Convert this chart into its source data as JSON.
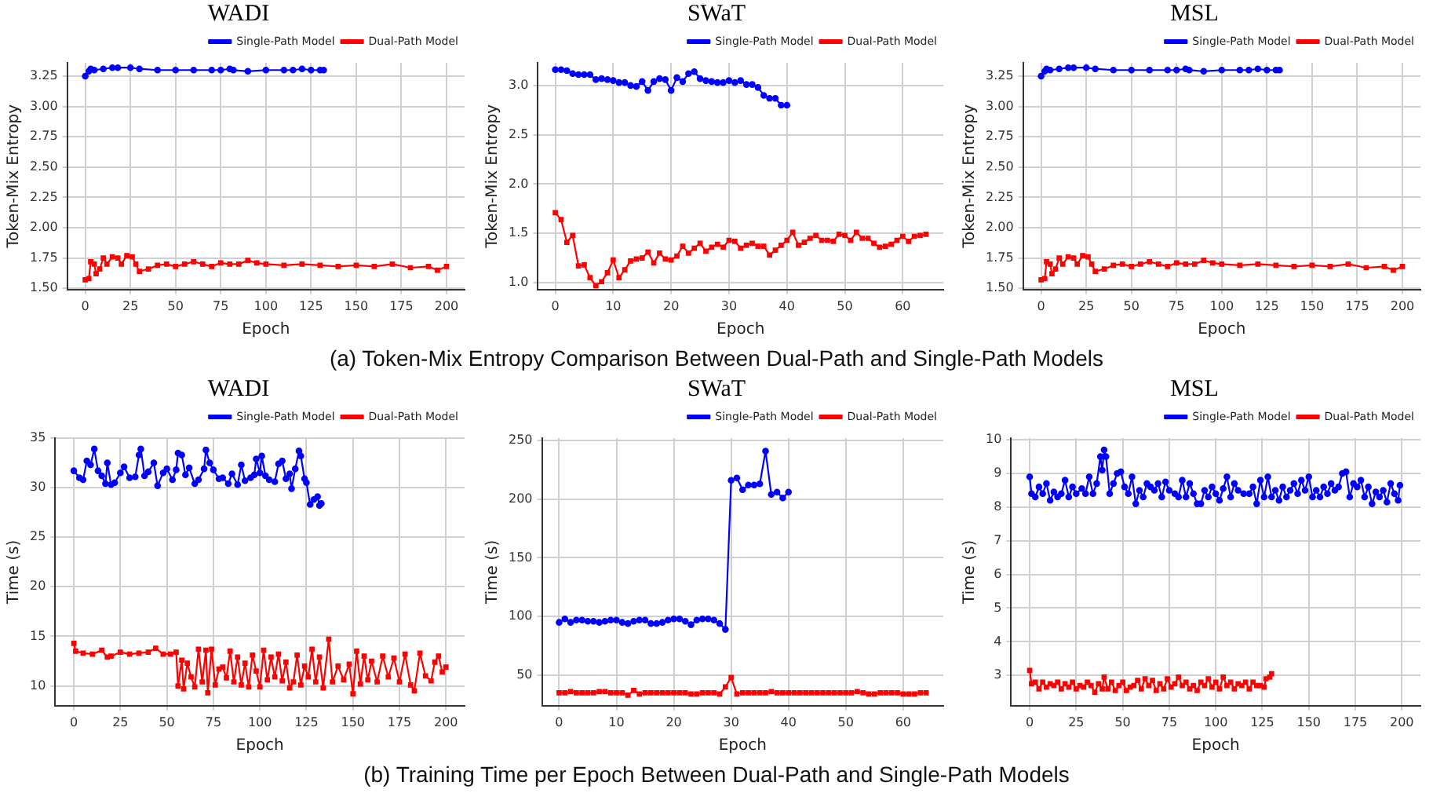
{
  "chart_data": [
    {
      "type": "line",
      "title": "WADI",
      "xlabel": "Epoch",
      "ylabel": "Token-Mix Entropy",
      "xlim": [
        -10,
        210
      ],
      "xticks": [
        0,
        25,
        50,
        75,
        100,
        125,
        150,
        175,
        200
      ],
      "ylim": [
        1.49,
        3.36
      ],
      "yticks": [
        {
          "value": 1.5,
          "label": "1.50"
        },
        1.75,
        {
          "value": 2.0,
          "label": "2.00"
        },
        2.25,
        {
          "value": 2.5,
          "label": "2.50"
        },
        2.75,
        {
          "value": 3.0,
          "label": "3.00"
        },
        3.25
      ],
      "grid": true,
      "legend": "top right",
      "series": [
        {
          "name": "Single-Path Model",
          "color": "#0000ff",
          "marker": "circle",
          "x": [
            0,
            2,
            3,
            5,
            10,
            15,
            18,
            25,
            30,
            40,
            50,
            60,
            70,
            75,
            80,
            82,
            90,
            100,
            110,
            115,
            120,
            125,
            130,
            132
          ],
          "values": [
            3.25,
            3.29,
            3.31,
            3.3,
            3.31,
            3.32,
            3.32,
            3.32,
            3.31,
            3.3,
            3.3,
            3.3,
            3.3,
            3.3,
            3.31,
            3.3,
            3.29,
            3.3,
            3.3,
            3.3,
            3.31,
            3.3,
            3.3,
            3.3
          ]
        },
        {
          "name": "Dual-Path Model",
          "color": "#ff0000",
          "marker": "square",
          "x": [
            0,
            2,
            3,
            5,
            6,
            8,
            10,
            12,
            15,
            18,
            20,
            23,
            26,
            28,
            30,
            35,
            40,
            45,
            50,
            55,
            60,
            65,
            70,
            75,
            80,
            85,
            90,
            95,
            100,
            110,
            120,
            130,
            140,
            150,
            160,
            170,
            180,
            190,
            195,
            200
          ],
          "values": [
            1.57,
            1.58,
            1.72,
            1.7,
            1.62,
            1.66,
            1.75,
            1.7,
            1.76,
            1.75,
            1.7,
            1.77,
            1.76,
            1.7,
            1.64,
            1.66,
            1.69,
            1.7,
            1.68,
            1.7,
            1.72,
            1.7,
            1.68,
            1.71,
            1.7,
            1.7,
            1.73,
            1.71,
            1.7,
            1.69,
            1.7,
            1.69,
            1.68,
            1.69,
            1.68,
            1.7,
            1.67,
            1.68,
            1.65,
            1.68
          ]
        }
      ]
    },
    {
      "type": "line",
      "title": "SWaT",
      "xlabel": "Epoch",
      "ylabel": "Token-Mix Entropy",
      "xlim": [
        -3,
        67
      ],
      "xticks": [
        0,
        10,
        20,
        30,
        40,
        50,
        60
      ],
      "ylim": [
        0.93,
        3.23
      ],
      "yticks": [
        {
          "value": 1.0,
          "label": "1.0"
        },
        1.5,
        {
          "value": 2.0,
          "label": "2.0"
        },
        2.5,
        {
          "value": 3.0,
          "label": "3.0"
        }
      ],
      "grid": true,
      "legend": "top right",
      "annotations": [
        "(a) Token-Mix Entropy Comparison Between Dual-Path and Single-Path Models"
      ],
      "series": [
        {
          "name": "Single-Path Model",
          "color": "#0000ff",
          "marker": "circle",
          "x": [
            0,
            1,
            2,
            3,
            4,
            5,
            6,
            7,
            8,
            9,
            10,
            11,
            12,
            13,
            14,
            15,
            16,
            17,
            18,
            19,
            20,
            21,
            22,
            23,
            24,
            25,
            26,
            27,
            28,
            29,
            30,
            31,
            32,
            33,
            34,
            35,
            36,
            37,
            38,
            39,
            40
          ],
          "values": [
            3.16,
            3.16,
            3.15,
            3.12,
            3.11,
            3.11,
            3.11,
            3.06,
            3.07,
            3.06,
            3.05,
            3.03,
            3.03,
            3.0,
            2.99,
            3.04,
            2.95,
            3.04,
            3.07,
            3.06,
            2.95,
            3.08,
            3.04,
            3.12,
            3.14,
            3.07,
            3.05,
            3.04,
            3.03,
            3.03,
            3.05,
            3.03,
            3.05,
            3.01,
            3.01,
            2.98,
            2.9,
            2.87,
            2.87,
            2.8,
            2.8
          ]
        },
        {
          "name": "Dual-Path Model",
          "color": "#ff0000",
          "marker": "square",
          "x": [
            0,
            1,
            2,
            3,
            4,
            5,
            6,
            7,
            8,
            9,
            10,
            11,
            12,
            13,
            14,
            15,
            16,
            17,
            18,
            19,
            20,
            21,
            22,
            23,
            24,
            25,
            26,
            27,
            28,
            29,
            30,
            31,
            32,
            33,
            34,
            35,
            36,
            37,
            38,
            39,
            40,
            41,
            42,
            43,
            44,
            45,
            46,
            47,
            48,
            49,
            50,
            51,
            52,
            53,
            54,
            55,
            56,
            57,
            58,
            59,
            60,
            61,
            62,
            63,
            64
          ],
          "values": [
            1.71,
            1.64,
            1.41,
            1.48,
            1.17,
            1.18,
            1.05,
            0.97,
            1.01,
            1.1,
            1.23,
            1.05,
            1.13,
            1.22,
            1.24,
            1.25,
            1.31,
            1.2,
            1.3,
            1.24,
            1.23,
            1.27,
            1.37,
            1.3,
            1.35,
            1.4,
            1.32,
            1.36,
            1.39,
            1.36,
            1.43,
            1.42,
            1.35,
            1.38,
            1.4,
            1.37,
            1.37,
            1.28,
            1.33,
            1.38,
            1.43,
            1.51,
            1.38,
            1.41,
            1.45,
            1.48,
            1.43,
            1.43,
            1.42,
            1.49,
            1.48,
            1.43,
            1.51,
            1.45,
            1.45,
            1.4,
            1.36,
            1.37,
            1.39,
            1.43,
            1.47,
            1.42,
            1.47,
            1.48,
            1.49
          ]
        }
      ]
    },
    {
      "type": "line",
      "title": "MSL",
      "xlabel": "Epoch",
      "ylabel": "Token-Mix Entropy",
      "xlim": [
        -10,
        210
      ],
      "xticks": [
        0,
        25,
        50,
        75,
        100,
        125,
        150,
        175,
        200
      ],
      "ylim": [
        1.49,
        3.36
      ],
      "yticks": [
        {
          "value": 1.5,
          "label": "1.50"
        },
        1.75,
        {
          "value": 2.0,
          "label": "2.00"
        },
        2.25,
        {
          "value": 2.5,
          "label": "2.50"
        },
        2.75,
        {
          "value": 3.0,
          "label": "3.00"
        },
        3.25
      ],
      "grid": true,
      "legend": "top right",
      "series": [
        {
          "name": "Single-Path Model",
          "color": "#0000ff",
          "marker": "circle",
          "x": [
            0,
            2,
            3,
            5,
            10,
            15,
            18,
            25,
            30,
            40,
            50,
            60,
            70,
            75,
            80,
            82,
            90,
            100,
            110,
            115,
            120,
            125,
            130,
            132
          ],
          "values": [
            3.25,
            3.29,
            3.31,
            3.3,
            3.31,
            3.32,
            3.32,
            3.32,
            3.31,
            3.3,
            3.3,
            3.3,
            3.3,
            3.3,
            3.31,
            3.3,
            3.29,
            3.3,
            3.3,
            3.3,
            3.31,
            3.3,
            3.3,
            3.3
          ]
        },
        {
          "name": "Dual-Path Model",
          "color": "#ff0000",
          "marker": "square",
          "x": [
            0,
            2,
            3,
            5,
            6,
            8,
            10,
            12,
            15,
            18,
            20,
            23,
            26,
            28,
            30,
            35,
            40,
            45,
            50,
            55,
            60,
            65,
            70,
            75,
            80,
            85,
            90,
            95,
            100,
            110,
            120,
            130,
            140,
            150,
            160,
            170,
            180,
            190,
            195,
            200
          ],
          "values": [
            1.57,
            1.58,
            1.72,
            1.7,
            1.62,
            1.66,
            1.75,
            1.7,
            1.76,
            1.75,
            1.7,
            1.77,
            1.76,
            1.7,
            1.64,
            1.66,
            1.69,
            1.7,
            1.68,
            1.7,
            1.72,
            1.7,
            1.68,
            1.71,
            1.7,
            1.7,
            1.73,
            1.71,
            1.7,
            1.69,
            1.7,
            1.69,
            1.68,
            1.69,
            1.68,
            1.7,
            1.67,
            1.68,
            1.65,
            1.68
          ]
        }
      ]
    },
    {
      "type": "line",
      "title": "WADI",
      "xlabel": "Epoch",
      "ylabel": "Time (s)",
      "xlim": [
        -10,
        210
      ],
      "xticks": [
        0,
        25,
        50,
        75,
        100,
        125,
        150,
        175,
        200
      ],
      "ylim": [
        8,
        35
      ],
      "yticks": [
        10,
        15,
        20,
        25,
        30,
        35
      ],
      "grid": true,
      "legend": "top right",
      "series": [
        {
          "name": "Single-Path Model",
          "color": "#0000ff",
          "marker": "circle",
          "x": [
            0,
            3,
            5,
            7,
            9,
            11,
            13,
            15,
            17,
            18,
            20,
            22,
            25,
            27,
            30,
            33,
            35,
            36,
            38,
            40,
            43,
            45,
            48,
            50,
            53,
            55,
            56,
            58,
            60,
            62,
            65,
            67,
            70,
            71,
            73,
            75,
            78,
            80,
            83,
            85,
            88,
            90,
            92,
            95,
            97,
            98,
            100,
            101,
            103,
            105,
            108,
            110,
            112,
            114,
            116,
            117,
            119,
            121,
            122,
            124,
            125,
            127,
            129,
            131,
            132,
            133
          ],
          "values": [
            31.7,
            31.0,
            30.8,
            32.7,
            32.3,
            33.9,
            31.7,
            31.2,
            30.4,
            32.5,
            30.3,
            30.5,
            31.5,
            32.1,
            31.0,
            31.1,
            33.3,
            33.9,
            31.2,
            31.6,
            32.5,
            30.2,
            31.5,
            31.9,
            30.8,
            31.8,
            33.5,
            33.3,
            31.3,
            32.0,
            30.4,
            30.8,
            31.9,
            33.8,
            32.5,
            31.8,
            30.9,
            31.0,
            30.4,
            31.4,
            30.3,
            32.3,
            30.7,
            31.0,
            31.3,
            32.9,
            31.5,
            33.2,
            31.2,
            30.8,
            30.6,
            32.4,
            32.7,
            30.9,
            31.4,
            29.9,
            31.9,
            33.7,
            33.2,
            30.9,
            30.5,
            28.3,
            28.8,
            29.1,
            28.2,
            28.4
          ]
        },
        {
          "name": "Dual-Path Model",
          "color": "#ff0000",
          "marker": "square",
          "x": [
            0,
            1,
            5,
            10,
            15,
            18,
            20,
            25,
            30,
            35,
            40,
            44,
            48,
            52,
            55,
            56,
            58,
            59,
            61,
            63,
            65,
            67,
            69,
            71,
            72,
            74,
            76,
            78,
            80,
            82,
            84,
            86,
            88,
            90,
            92,
            94,
            96,
            98,
            100,
            102,
            104,
            106,
            108,
            110,
            112,
            114,
            116,
            118,
            120,
            122,
            124,
            126,
            128,
            130,
            132,
            134,
            137,
            139,
            142,
            145,
            148,
            150,
            152,
            154,
            156,
            158,
            160,
            163,
            166,
            169,
            172,
            175,
            178,
            181,
            183,
            186,
            189,
            192,
            194,
            196,
            198,
            200
          ],
          "values": [
            14.3,
            13.5,
            13.3,
            13.2,
            13.6,
            12.9,
            13.0,
            13.4,
            13.2,
            13.3,
            13.4,
            13.8,
            13.2,
            13.2,
            13.4,
            10.0,
            12.6,
            9.7,
            12.3,
            10.9,
            9.9,
            13.7,
            10.4,
            13.6,
            9.3,
            13.7,
            10.1,
            11.7,
            11.9,
            10.8,
            13.5,
            10.4,
            12.9,
            10.1,
            12.3,
            9.9,
            13.1,
            11.5,
            9.9,
            13.6,
            10.6,
            12.9,
            10.9,
            13.2,
            10.5,
            12.4,
            9.8,
            10.4,
            13.1,
            10.1,
            12.0,
            10.9,
            13.7,
            10.4,
            12.9,
            9.8,
            14.7,
            10.4,
            12.0,
            10.6,
            12.2,
            9.2,
            13.5,
            10.2,
            13.0,
            10.6,
            12.5,
            10.4,
            13.0,
            10.9,
            12.8,
            10.4,
            13.2,
            10.1,
            9.5,
            13.3,
            11.0,
            10.5,
            12.4,
            13.0,
            11.4,
            11.9
          ]
        }
      ]
    },
    {
      "type": "line",
      "title": "SWaT",
      "xlabel": "Epoch",
      "ylabel": "Time (s)",
      "xlim": [
        -3,
        67
      ],
      "xticks": [
        0,
        10,
        20,
        30,
        40,
        50,
        60
      ],
      "ylim": [
        24,
        252
      ],
      "yticks": [
        50,
        100,
        150,
        200,
        250
      ],
      "grid": true,
      "legend": "top right",
      "annotations": [
        "(b) Training Time per Epoch Between Dual-Path and Single-Path Models"
      ],
      "series": [
        {
          "name": "Single-Path Model",
          "color": "#0000ff",
          "marker": "circle",
          "x": [
            0,
            1,
            2,
            3,
            4,
            5,
            6,
            7,
            8,
            9,
            10,
            11,
            12,
            13,
            14,
            15,
            16,
            17,
            18,
            19,
            20,
            21,
            22,
            23,
            24,
            25,
            26,
            27,
            28,
            29,
            30,
            31,
            32,
            33,
            34,
            35,
            36,
            37,
            38,
            39,
            40
          ],
          "values": [
            95,
            98,
            95,
            97,
            97,
            96,
            96,
            95,
            96,
            97,
            97,
            95,
            94,
            96,
            97,
            97,
            94,
            94,
            95,
            97,
            98,
            98,
            96,
            93,
            97,
            98,
            98,
            97,
            94,
            89,
            216,
            218,
            208,
            212,
            212,
            213,
            241,
            204,
            206,
            201,
            206
          ]
        },
        {
          "name": "Dual-Path Model",
          "color": "#ff0000",
          "marker": "square",
          "x": [
            0,
            1,
            2,
            3,
            4,
            5,
            6,
            7,
            8,
            9,
            10,
            11,
            12,
            13,
            14,
            15,
            16,
            17,
            18,
            19,
            20,
            21,
            22,
            23,
            24,
            25,
            26,
            27,
            28,
            29,
            30,
            31,
            32,
            33,
            34,
            35,
            36,
            37,
            38,
            39,
            40,
            41,
            42,
            43,
            44,
            45,
            46,
            47,
            48,
            49,
            50,
            51,
            52,
            53,
            54,
            55,
            56,
            57,
            58,
            59,
            60,
            61,
            62,
            63,
            64
          ],
          "values": [
            35,
            35,
            36,
            35,
            35,
            35,
            35,
            36,
            36,
            35,
            35,
            35,
            33,
            37,
            34,
            35,
            35,
            35,
            35,
            35,
            35,
            35,
            35,
            34,
            34,
            35,
            35,
            35,
            34,
            40,
            48,
            34,
            35,
            35,
            35,
            35,
            35,
            36,
            35,
            35,
            35,
            35,
            35,
            35,
            35,
            35,
            35,
            35,
            35,
            35,
            35,
            35,
            36,
            35,
            34,
            34,
            35,
            35,
            35,
            35,
            34,
            34,
            34,
            35,
            35
          ]
        }
      ]
    },
    {
      "type": "line",
      "title": "MSL",
      "xlabel": "Epoch",
      "ylabel": "Time (s)",
      "xlim": [
        -10,
        210
      ],
      "xticks": [
        0,
        25,
        50,
        75,
        100,
        125,
        150,
        175,
        200
      ],
      "ylim": [
        2.1,
        10.05
      ],
      "yticks": [
        3,
        4,
        5,
        6,
        7,
        8,
        9,
        10
      ],
      "grid": true,
      "legend": "top right",
      "series": [
        {
          "name": "Single-Path Model",
          "color": "#0000ff",
          "marker": "circle",
          "x": [
            0,
            1,
            3,
            5,
            7,
            9,
            11,
            13,
            15,
            17,
            19,
            21,
            23,
            25,
            28,
            30,
            32,
            34,
            36,
            38,
            39,
            40,
            41,
            43,
            45,
            47,
            49,
            51,
            53,
            55,
            57,
            59,
            61,
            63,
            65,
            67,
            69,
            71,
            73,
            75,
            78,
            80,
            82,
            84,
            86,
            88,
            90,
            92,
            94,
            96,
            98,
            100,
            102,
            104,
            106,
            108,
            110,
            112,
            115,
            118,
            120,
            122,
            124,
            126,
            128,
            130,
            132,
            134,
            136,
            138,
            140,
            142,
            144,
            146,
            148,
            150,
            152,
            154,
            156,
            158,
            160,
            162,
            164,
            166,
            168,
            170,
            172,
            174,
            176,
            178,
            180,
            182,
            184,
            186,
            188,
            190,
            192,
            194,
            196,
            198,
            199
          ],
          "values": [
            8.9,
            8.4,
            8.3,
            8.6,
            8.4,
            8.7,
            8.2,
            8.45,
            8.3,
            8.4,
            8.8,
            8.3,
            8.6,
            8.4,
            8.55,
            8.4,
            8.9,
            8.4,
            8.7,
            9.5,
            9.1,
            9.7,
            9.5,
            8.4,
            8.7,
            9.0,
            9.05,
            8.6,
            8.4,
            8.9,
            8.1,
            8.5,
            8.3,
            8.7,
            8.6,
            8.5,
            8.7,
            8.3,
            8.75,
            8.5,
            8.4,
            8.3,
            8.8,
            8.3,
            8.7,
            8.4,
            8.1,
            8.1,
            8.5,
            8.3,
            8.6,
            8.4,
            8.2,
            8.55,
            8.9,
            8.3,
            8.7,
            8.5,
            8.4,
            8.4,
            8.6,
            8.1,
            8.8,
            8.3,
            8.9,
            8.3,
            8.5,
            8.2,
            8.6,
            8.3,
            8.5,
            8.7,
            8.4,
            8.8,
            8.5,
            8.9,
            8.3,
            8.5,
            8.3,
            8.6,
            8.4,
            8.7,
            8.5,
            8.6,
            9.0,
            9.05,
            8.3,
            8.7,
            8.6,
            8.8,
            8.3,
            8.6,
            8.1,
            8.45,
            8.3,
            8.5,
            8.15,
            8.7,
            8.4,
            8.2,
            8.65
          ]
        },
        {
          "name": "Dual-Path Model",
          "color": "#ff0000",
          "marker": "square",
          "x": [
            0,
            1,
            3,
            5,
            7,
            9,
            11,
            13,
            15,
            17,
            19,
            21,
            23,
            25,
            27,
            29,
            31,
            33,
            35,
            37,
            39,
            40,
            42,
            44,
            46,
            48,
            50,
            52,
            54,
            56,
            58,
            60,
            62,
            64,
            66,
            68,
            70,
            72,
            74,
            76,
            78,
            80,
            82,
            84,
            86,
            88,
            90,
            92,
            94,
            96,
            98,
            100,
            102,
            104,
            106,
            108,
            110,
            112,
            114,
            116,
            118,
            120,
            122,
            124,
            126,
            127,
            129,
            130
          ],
          "values": [
            3.15,
            2.75,
            2.8,
            2.6,
            2.8,
            2.65,
            2.75,
            2.7,
            2.8,
            2.6,
            2.75,
            2.65,
            2.8,
            2.6,
            2.7,
            2.65,
            2.8,
            2.7,
            2.5,
            2.75,
            2.6,
            2.95,
            2.6,
            2.8,
            2.55,
            2.7,
            2.8,
            2.55,
            2.65,
            2.7,
            2.85,
            2.6,
            2.9,
            2.7,
            2.85,
            2.55,
            2.75,
            2.6,
            2.9,
            2.65,
            2.75,
            2.95,
            2.7,
            2.8,
            2.6,
            2.7,
            2.55,
            2.8,
            2.7,
            2.9,
            2.65,
            2.8,
            2.6,
            2.95,
            2.7,
            2.8,
            2.6,
            2.75,
            2.7,
            2.8,
            2.6,
            2.8,
            2.7,
            2.7,
            2.65,
            2.9,
            2.95,
            3.05
          ]
        }
      ]
    }
  ]
}
